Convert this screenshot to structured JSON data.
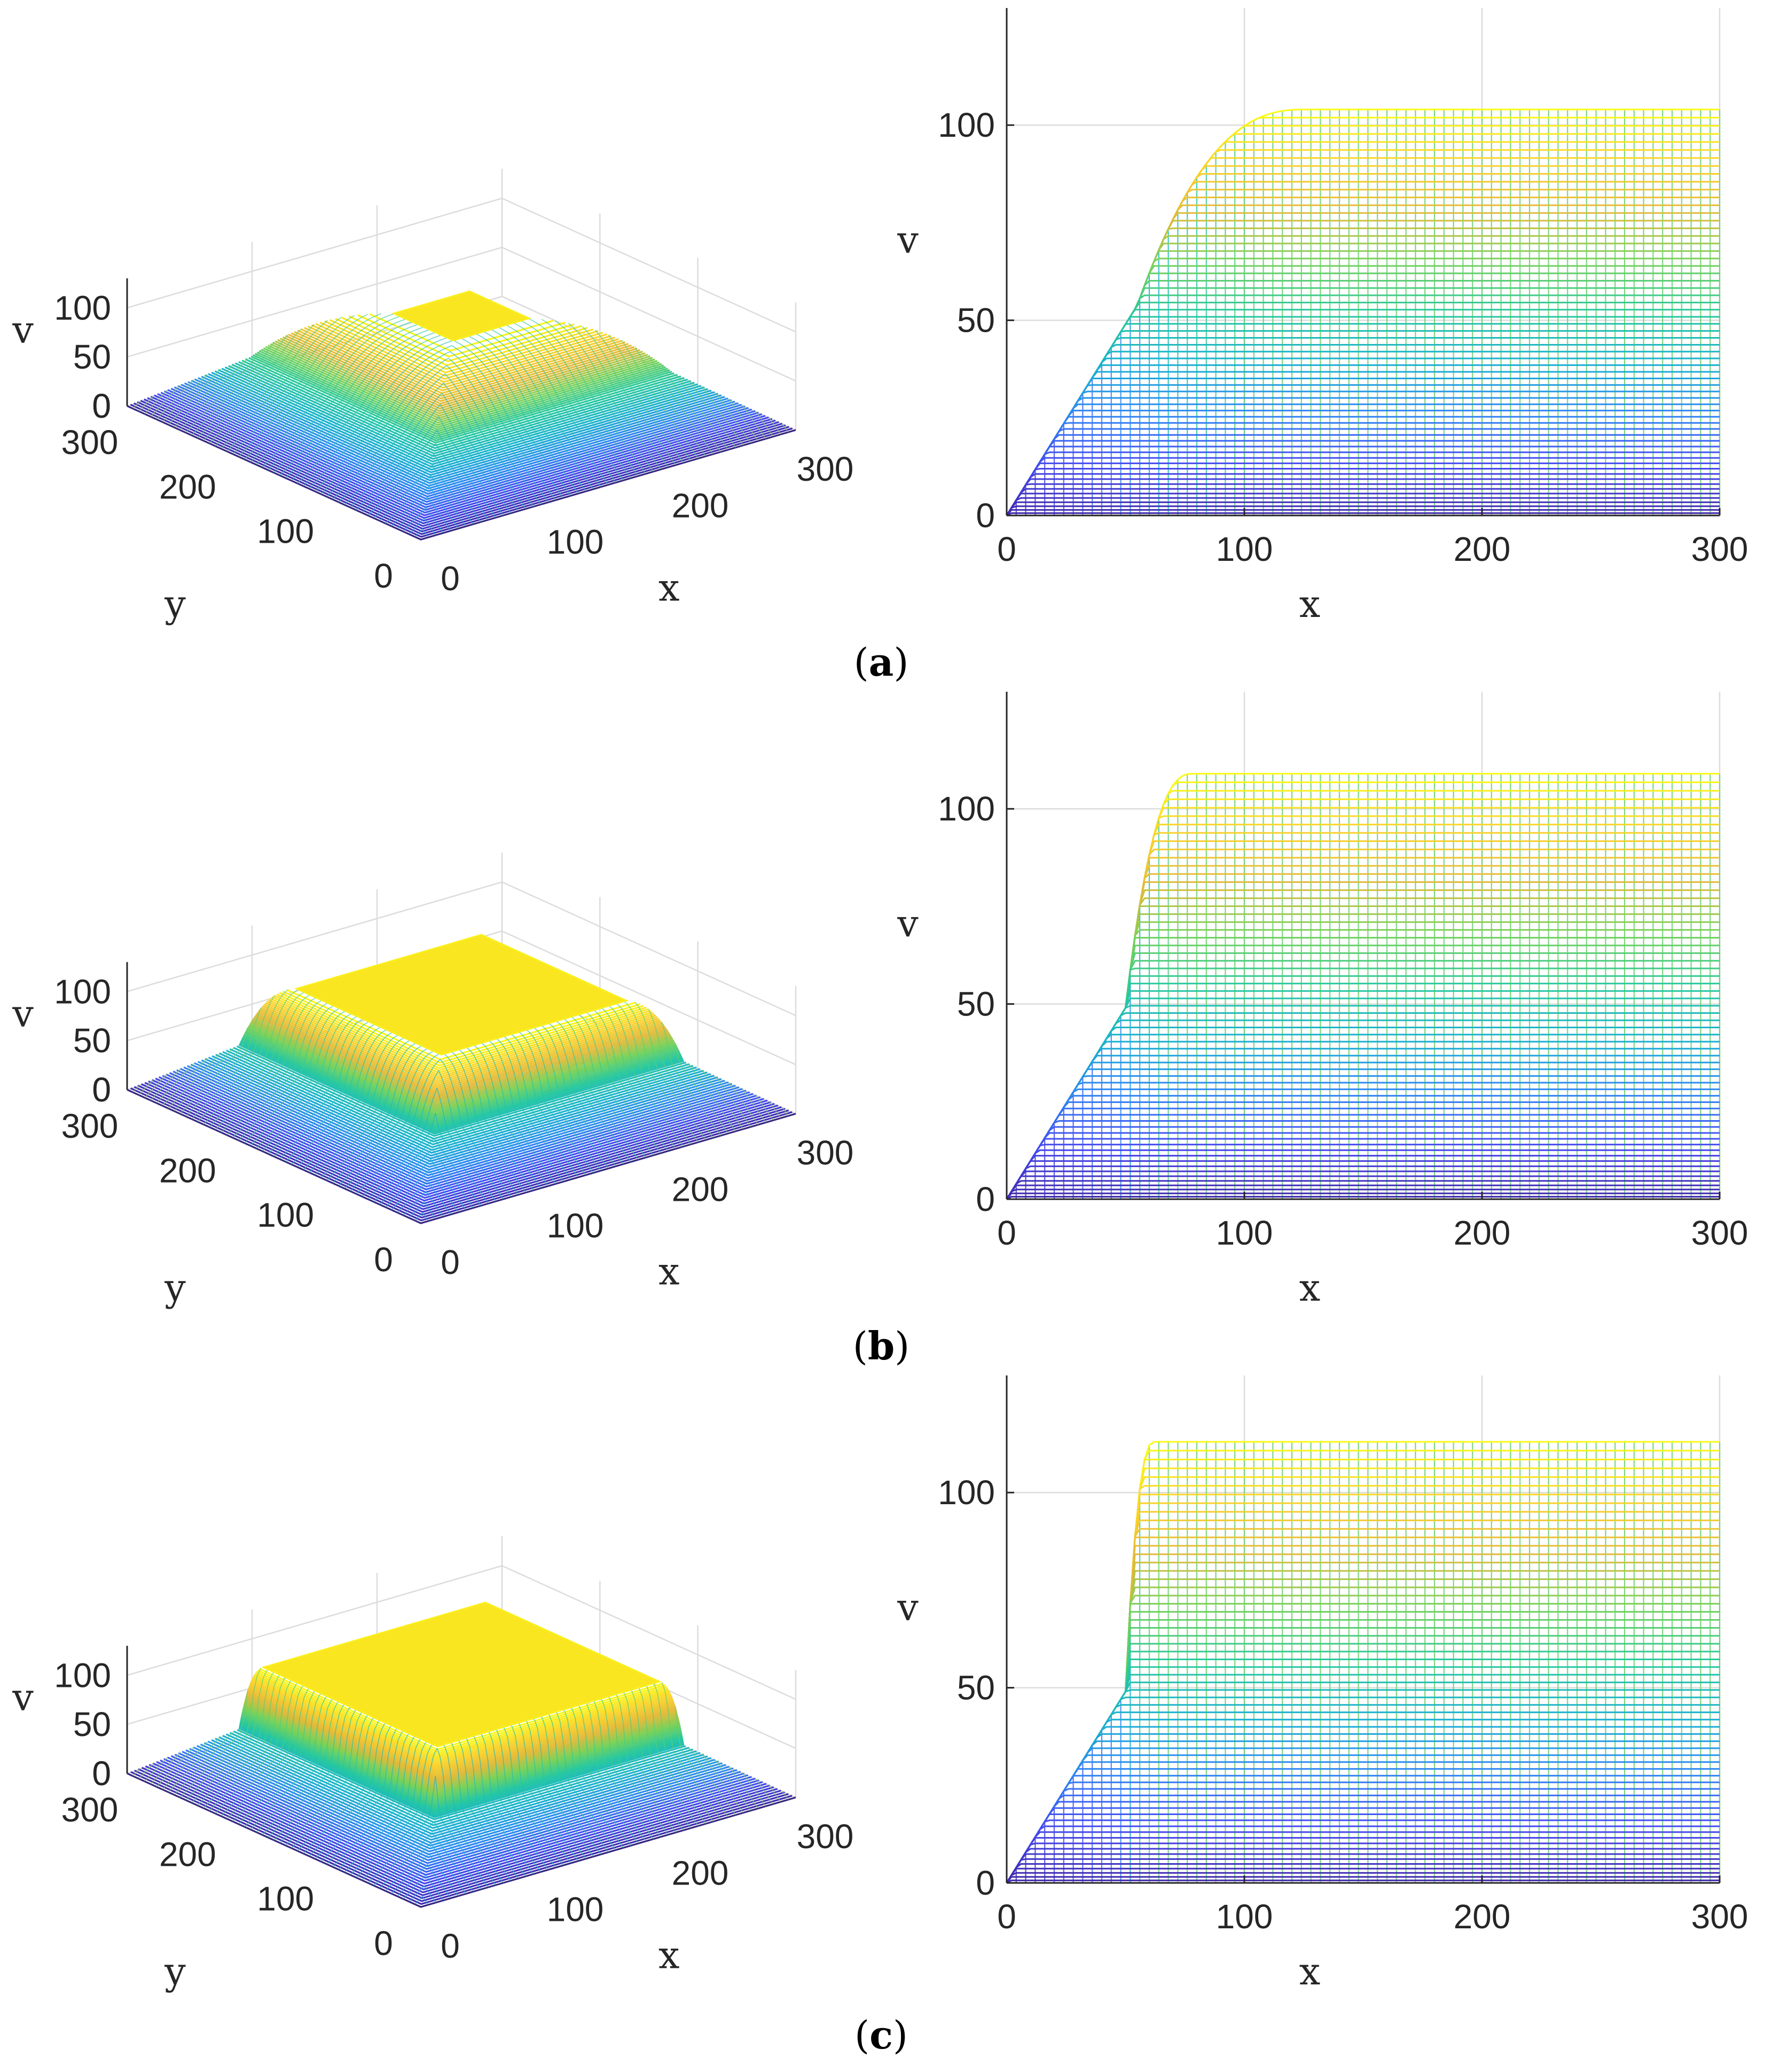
{
  "panels": [
    {
      "label": "a",
      "text_open": "(",
      "text_close": ")"
    },
    {
      "label": "b",
      "text_open": "(",
      "text_close": ")"
    },
    {
      "label": "c",
      "text_open": "(",
      "text_close": ")"
    }
  ],
  "colormap": [
    "#3e26a8",
    "#4648f1",
    "#2f85f5",
    "#19b1d1",
    "#26c8a0",
    "#76d25a",
    "#e3ba39",
    "#fbd42c",
    "#f9fb14"
  ],
  "chart_data": [
    {
      "panel": "a",
      "view": "3d",
      "type": "surface",
      "xlabel": "x",
      "ylabel": "y",
      "zlabel": "v",
      "xlim": [
        0,
        300
      ],
      "ylim": [
        0,
        300
      ],
      "zlim": [
        0,
        130
      ],
      "xticks": [
        0,
        100,
        200,
        300
      ],
      "yticks": [
        0,
        100,
        200,
        300
      ],
      "zticks": [
        0,
        50,
        100
      ],
      "plateau": 104,
      "ramp_end": 55,
      "knee_end": 125,
      "grid": true
    },
    {
      "panel": "a",
      "view": "side",
      "type": "line",
      "xlabel": "x",
      "ylabel": "v",
      "xlim": [
        0,
        300
      ],
      "ylim": [
        0,
        130
      ],
      "xticks": [
        0,
        100,
        200,
        300
      ],
      "yticks": [
        0,
        50,
        100
      ],
      "plateau": 104,
      "ramp_end": 55,
      "knee_end": 125,
      "grid": true
    },
    {
      "panel": "b",
      "view": "3d",
      "type": "surface",
      "xlabel": "x",
      "ylabel": "y",
      "zlabel": "v",
      "xlim": [
        0,
        300
      ],
      "ylim": [
        0,
        300
      ],
      "zlim": [
        0,
        130
      ],
      "xticks": [
        0,
        100,
        200,
        300
      ],
      "yticks": [
        0,
        100,
        200,
        300
      ],
      "zticks": [
        0,
        50,
        100
      ],
      "plateau": 109,
      "ramp_end": 50,
      "knee_end": 78,
      "grid": true
    },
    {
      "panel": "b",
      "view": "side",
      "type": "line",
      "xlabel": "x",
      "ylabel": "v",
      "xlim": [
        0,
        300
      ],
      "ylim": [
        0,
        130
      ],
      "xticks": [
        0,
        100,
        200,
        300
      ],
      "yticks": [
        0,
        50,
        100
      ],
      "plateau": 109,
      "ramp_end": 50,
      "knee_end": 78,
      "grid": true
    },
    {
      "panel": "c",
      "view": "3d",
      "type": "surface",
      "xlabel": "x",
      "ylabel": "y",
      "zlabel": "v",
      "xlim": [
        0,
        300
      ],
      "ylim": [
        0,
        300
      ],
      "zlim": [
        0,
        130
      ],
      "xticks": [
        0,
        100,
        200,
        300
      ],
      "yticks": [
        0,
        100,
        200,
        300
      ],
      "zticks": [
        0,
        50,
        100
      ],
      "plateau": 113,
      "ramp_end": 50,
      "knee_end": 62,
      "grid": true
    },
    {
      "panel": "c",
      "view": "side",
      "type": "line",
      "xlabel": "x",
      "ylabel": "v",
      "xlim": [
        0,
        300
      ],
      "ylim": [
        0,
        130
      ],
      "xticks": [
        0,
        100,
        200,
        300
      ],
      "yticks": [
        0,
        50,
        100
      ],
      "plateau": 113,
      "ramp_end": 50,
      "knee_end": 62,
      "grid": true
    }
  ]
}
